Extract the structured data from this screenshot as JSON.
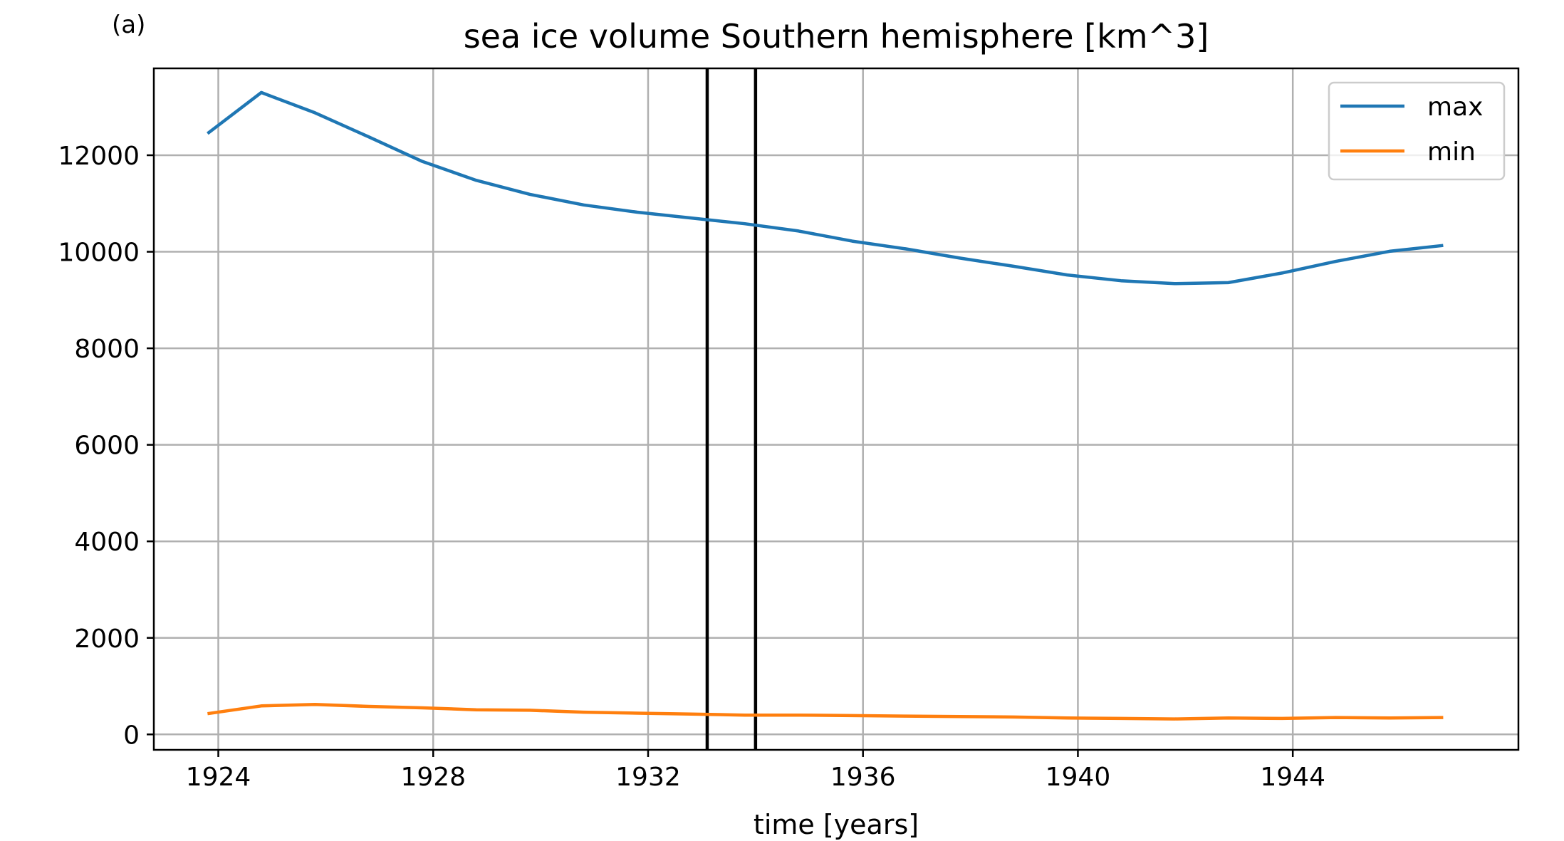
{
  "panel_label": "(a)",
  "chart_data": {
    "type": "line",
    "title": "sea ice volume Southern hemisphere [km^3]",
    "xlabel": "time [years]",
    "ylabel": "",
    "xlim": [
      1922.8,
      1948.2
    ],
    "ylim": [
      -320,
      13800
    ],
    "x_ticks": [
      1924,
      1928,
      1932,
      1936,
      1940,
      1944
    ],
    "y_ticks": [
      0,
      2000,
      4000,
      6000,
      8000,
      10000,
      12000
    ],
    "grid": true,
    "legend_position": "top-right",
    "vertical_lines": [
      1933.1,
      1934.0
    ],
    "series": [
      {
        "name": "max",
        "color": "#1f77b4",
        "x": [
          1923.8,
          1924.8,
          1925.8,
          1926.8,
          1927.8,
          1928.8,
          1929.8,
          1930.8,
          1931.8,
          1932.8,
          1933.8,
          1934.8,
          1935.8,
          1936.8,
          1937.8,
          1938.8,
          1939.8,
          1940.8,
          1941.8,
          1942.8,
          1943.8,
          1944.8,
          1945.8,
          1946.8
        ],
        "y": [
          12450,
          13300,
          12880,
          12380,
          11870,
          11480,
          11190,
          10970,
          10820,
          10700,
          10580,
          10430,
          10220,
          10060,
          9870,
          9700,
          9520,
          9400,
          9340,
          9360,
          9560,
          9800,
          10010,
          10130
        ]
      },
      {
        "name": "min",
        "color": "#ff7f0e",
        "x": [
          1923.8,
          1924.8,
          1925.8,
          1926.8,
          1927.8,
          1928.8,
          1929.8,
          1930.8,
          1931.8,
          1932.8,
          1933.8,
          1934.8,
          1935.8,
          1936.8,
          1937.8,
          1938.8,
          1939.8,
          1940.8,
          1941.8,
          1942.8,
          1943.8,
          1944.8,
          1945.8,
          1946.8
        ],
        "y": [
          430,
          590,
          620,
          580,
          550,
          510,
          500,
          460,
          440,
          420,
          400,
          400,
          390,
          380,
          370,
          360,
          340,
          330,
          320,
          340,
          330,
          350,
          340,
          350
        ]
      }
    ]
  }
}
